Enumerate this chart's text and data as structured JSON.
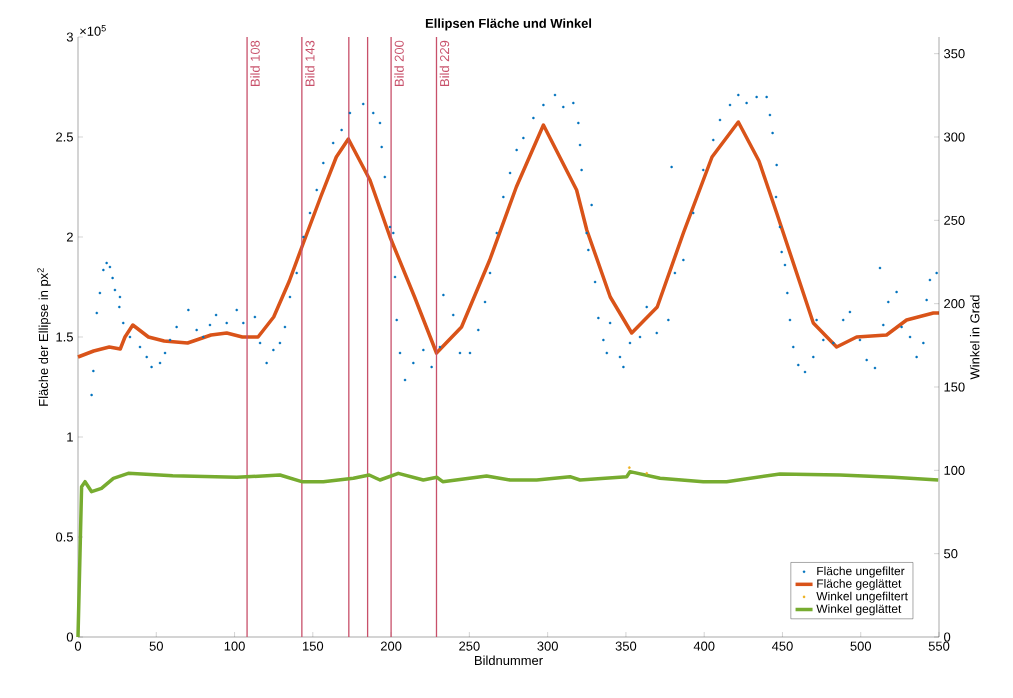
{
  "chart_data": {
    "type": "scatter",
    "title": "**Ellipsen Fläche und Winkel**",
    "xlabel": "Bildnummer",
    "ylabel": "Fläche der Ellipse in px$^{2}$",
    "y2label": "Winkel in Grad",
    "annotations": [
      "×10$^{5}$"
    ],
    "xlim": [
      0,
      550
    ],
    "xticks": [
      0,
      50,
      100,
      150,
      200,
      250,
      300,
      350,
      400,
      450,
      500,
      550
    ],
    "ylim": [
      0,
      3
    ],
    "yticks": [
      0,
      0.5,
      1,
      1.5,
      2,
      2.5,
      3
    ],
    "y2lim": [
      0,
      360
    ],
    "y2ticks": [
      0,
      50,
      100,
      150,
      200,
      250,
      300,
      350
    ],
    "legend": "bottom right",
    "grid": false,
    "series": [
      {
        "name": "Fläche ungefilter",
        "marker": "circle",
        "color": "#0072bd",
        "x": [
          8.7,
          9.8,
          12,
          14,
          16.2,
          18.3,
          20.4,
          22.1,
          23.6,
          26.8,
          26.4,
          28.9,
          33.2,
          39.6,
          43.9,
          47,
          52.4,
          55.6,
          58.8,
          63,
          70.5,
          75.8,
          80,
          84.3,
          88.2,
          95,
          101.4,
          105.6,
          113,
          116.3,
          120.5,
          124.8,
          129,
          132.2,
          135.4,
          139.7,
          144,
          148.2,
          152.5,
          156.7,
          163,
          168.4,
          173.7,
          182.2,
          188.6,
          192.9,
          194,
          196,
          199.3,
          201.4,
          202.5,
          203.6,
          205.7,
          208.9,
          214.2,
          220.6,
          225.9,
          231.2,
          233.4,
          239.7,
          244,
          250.4,
          255.7,
          260,
          263.2,
          267.5,
          271.7,
          276,
          280.2,
          284.5,
          290.9,
          297.3,
          304.7,
          310,
          316.4,
          319.6,
          320.7,
          321.7,
          324.9,
          326,
          328.1,
          330.3,
          332.4,
          335.6,
          337.8,
          339.9,
          346.2,
          348.4,
          352.6,
          359,
          363.3,
          369.7,
          377.1,
          379.2,
          381.3,
          386.7,
          393,
          399.4,
          405.8,
          410.1,
          416.5,
          421.8,
          427.1,
          433.5,
          439.9,
          442,
          443.7,
          446.3,
          445.9,
          448.4,
          449.5,
          451.6,
          453.1,
          454.8,
          456.9,
          460.1,
          464.4,
          469.7,
          471.8,
          476.1,
          482.5,
          488.8,
          493.1,
          499.5,
          503.8,
          509.1,
          512.3,
          514.4,
          517.6,
          522.9,
          526.1,
          531.5,
          535.7,
          540,
          542.1,
          544.2,
          548.5
        ],
        "values": [
          1.21,
          1.33,
          1.62,
          1.72,
          1.835,
          1.87,
          1.85,
          1.795,
          1.735,
          1.7,
          1.65,
          1.57,
          1.5,
          1.45,
          1.4,
          1.35,
          1.37,
          1.42,
          1.485,
          1.55,
          1.635,
          1.535,
          1.5,
          1.56,
          1.61,
          1.57,
          1.635,
          1.57,
          1.6,
          1.47,
          1.37,
          1.435,
          1.47,
          1.55,
          1.7,
          1.82,
          2.0,
          2.12,
          2.235,
          2.37,
          2.47,
          2.535,
          2.62,
          2.665,
          2.62,
          2.57,
          2.45,
          2.3,
          2.05,
          2.02,
          1.8,
          1.585,
          1.42,
          1.285,
          1.37,
          1.435,
          1.35,
          1.45,
          1.71,
          1.61,
          1.42,
          1.42,
          1.535,
          1.675,
          1.82,
          2.02,
          2.2,
          2.32,
          2.435,
          2.495,
          2.595,
          2.66,
          2.71,
          2.65,
          2.67,
          2.57,
          2.46,
          2.335,
          2.02,
          1.935,
          2.16,
          1.775,
          1.595,
          1.485,
          1.42,
          1.57,
          1.4,
          1.35,
          1.47,
          1.5,
          1.65,
          1.52,
          1.585,
          2.35,
          1.82,
          1.885,
          2.12,
          2.335,
          2.485,
          2.585,
          2.66,
          2.71,
          2.67,
          2.7,
          2.7,
          2.61,
          2.52,
          2.36,
          2.2,
          2.05,
          1.925,
          1.86,
          1.72,
          1.585,
          1.45,
          1.36,
          1.325,
          1.4,
          1.585,
          1.485,
          1.47,
          1.585,
          1.625,
          1.485,
          1.385,
          1.345,
          1.845,
          1.56,
          1.675,
          1.725,
          1.55,
          1.5,
          1.4,
          1.47,
          1.685,
          1.785,
          1.82
        ]
      },
      {
        "name": "Fläche geglättet",
        "type": "line",
        "marker": "none",
        "color": "#d95319",
        "x": [
          0,
          10,
          20,
          27,
          30,
          35,
          45,
          55,
          70,
          85,
          95,
          105,
          115,
          125,
          135,
          143,
          155,
          165,
          172.7,
          186.5,
          199.3,
          215,
          229,
          245,
          263,
          280,
          297.3,
          318.5,
          325,
          340,
          353.7,
          370,
          386.7,
          405,
          421.8,
          435,
          446.3,
          469.7,
          484.6,
          497.4,
          516.5,
          529.3,
          546.4,
          550
        ],
        "values": [
          1.4,
          1.43,
          1.45,
          1.44,
          1.5,
          1.56,
          1.5,
          1.48,
          1.47,
          1.51,
          1.52,
          1.5,
          1.5,
          1.6,
          1.78,
          1.95,
          2.2,
          2.4,
          2.49,
          2.285,
          2.0,
          1.7,
          1.42,
          1.55,
          1.885,
          2.25,
          2.56,
          2.235,
          2.035,
          1.7,
          1.52,
          1.65,
          2.02,
          2.4,
          2.575,
          2.38,
          2.12,
          1.57,
          1.45,
          1.5,
          1.51,
          1.585,
          1.62,
          1.62
        ]
      },
      {
        "name": "Winkel ungefiltert",
        "marker": "circle",
        "axis": "y2",
        "color": "#edb120",
        "x": [
          352.2,
          363.3
        ],
        "values": [
          101.6,
          98.2
        ]
      },
      {
        "name": "Winkel geglättet",
        "type": "line",
        "marker": "none",
        "axis": "y2",
        "color": "#77ac30",
        "x": [
          0,
          2.3,
          4.5,
          8.7,
          15,
          22.6,
          32.1,
          60.5,
          101.4,
          129,
          142.9,
          156.7,
          175.9,
          186,
          192.9,
          204.6,
          220.6,
          229.3,
          233,
          261,
          276,
          293,
          314.3,
          320.7,
          350.5,
          352.6,
          371.8,
          399.4,
          414.3,
          448.4,
          486.7,
          520.8,
          549.5
        ],
        "values": [
          0,
          90.2,
          93.2,
          87.2,
          89.2,
          95.2,
          98.2,
          96.8,
          95.8,
          97.2,
          93.2,
          93.2,
          95.2,
          97.2,
          94.2,
          98.2,
          94.2,
          95.8,
          93.2,
          96.6,
          94.2,
          94.2,
          96.2,
          94.2,
          96.2,
          99.2,
          95.2,
          93.2,
          93.2,
          97.8,
          97.2,
          95.8,
          94.2
        ]
      }
    ],
    "ref_lines": [
      {
        "axis": "x",
        "value": 108,
        "label": "Bild 108",
        "color": "#c8506a"
      },
      {
        "axis": "x",
        "value": 143,
        "label": "Bild 143",
        "color": "#c8506a"
      },
      {
        "axis": "x",
        "value": 173,
        "color": "#c8506a"
      },
      {
        "axis": "x",
        "value": 185,
        "color": "#c8506a"
      },
      {
        "axis": "x",
        "value": 200,
        "label": "Bild 200",
        "color": "#c8506a"
      },
      {
        "axis": "x",
        "value": 229,
        "label": "Bild 229",
        "color": "#c8506a"
      }
    ]
  }
}
